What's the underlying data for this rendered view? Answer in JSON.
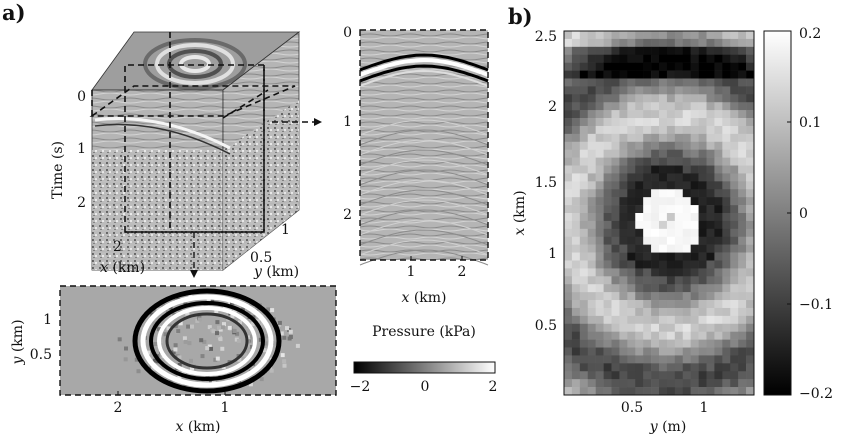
{
  "panel_a": {
    "label": "a)",
    "cube": {
      "time_axis": {
        "label": "Time (s)",
        "ticks": [
          "0",
          "1",
          "2"
        ]
      },
      "x_axis": {
        "var": "x",
        "unit": "(km)",
        "ticks": [
          "2"
        ]
      },
      "y_axis": {
        "var": "y",
        "unit": "(km)",
        "ticks": [
          "1",
          "0.5"
        ]
      }
    },
    "time_slice": {
      "y_axis": {
        "var": "y",
        "unit": "(km)",
        "ticks": [
          "1",
          "0.5"
        ]
      },
      "x_axis": {
        "var": "x",
        "unit": "(km)",
        "ticks": [
          "2",
          "1"
        ]
      }
    },
    "shot_gather": {
      "y_ticks": [
        "0",
        "1",
        "2"
      ],
      "x_axis": {
        "var": "x",
        "unit": "(km)",
        "ticks": [
          "1",
          "2"
        ]
      }
    },
    "colorbar": {
      "title": "Pressure (kPa)",
      "ticks": [
        "−2",
        "0",
        "2"
      ],
      "range": [
        -2,
        2
      ]
    }
  },
  "panel_b": {
    "label": "b)",
    "x_axis": {
      "var": "y",
      "unit": "(m)",
      "ticks": [
        "0.5",
        "1"
      ]
    },
    "y_axis": {
      "var": "x",
      "unit": "(km)",
      "ticks": [
        "2.5",
        "2",
        "1.5",
        "1",
        "0.5"
      ]
    },
    "colorbar": {
      "ticks": [
        "0.2",
        "0.1",
        "0",
        "−0.1",
        "−0.2"
      ],
      "range": [
        -0.2,
        0.2
      ]
    }
  },
  "colors": {
    "high": "#ffffff",
    "low": "#000000",
    "ink": "#111111"
  }
}
